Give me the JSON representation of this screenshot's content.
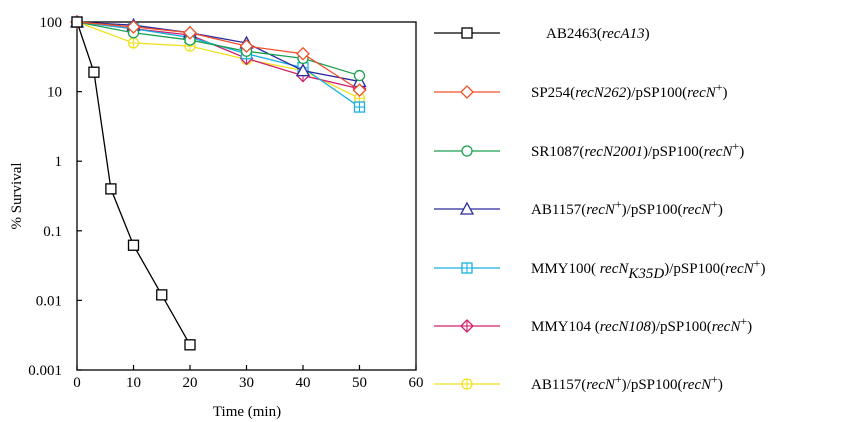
{
  "chart_data": {
    "type": "line",
    "title": "",
    "xlabel": "Time (min)",
    "ylabel": "% Survival",
    "xlim": [
      0,
      60
    ],
    "ylim": [
      0.001,
      100
    ],
    "yscale": "log",
    "grid": false,
    "legend_position": "right",
    "x_ticks": [
      0,
      10,
      20,
      30,
      40,
      50,
      60
    ],
    "y_ticks": [
      100,
      10,
      1,
      0.1,
      0.01,
      0.001
    ],
    "x_tick_labels": [
      "0",
      "10",
      "20",
      "30",
      "40",
      "50",
      "60"
    ],
    "y_tick_labels": [
      "100",
      "10",
      "1",
      "0.1",
      "0.01",
      "0.001"
    ],
    "series": [
      {
        "name": "AB2463(recA13)",
        "legend_parts": [
          {
            "text": "AB2463(",
            "style": "normal"
          },
          {
            "text": "recA13",
            "style": "italic"
          },
          {
            "text": ")",
            "style": "normal"
          }
        ],
        "color": "#000000",
        "marker": "square",
        "x": [
          0,
          3,
          6,
          10,
          15,
          20
        ],
        "y": [
          100,
          19,
          0.4,
          0.062,
          0.012,
          0.0023
        ]
      },
      {
        "name": "SP254(recN262)/pSP100(recN+)",
        "legend_parts": [
          {
            "text": "SP254(",
            "style": "normal"
          },
          {
            "text": "recN262",
            "style": "italic"
          },
          {
            "text": ")/pSP100(",
            "style": "normal"
          },
          {
            "text": "recN",
            "style": "italic"
          },
          {
            "text": "+",
            "style": "sup"
          },
          {
            "text": ")",
            "style": "normal"
          }
        ],
        "color": "#f0502a",
        "marker": "diamond",
        "x": [
          0,
          10,
          20,
          30,
          40,
          50
        ],
        "y": [
          100,
          85,
          70,
          45,
          35,
          10.5
        ]
      },
      {
        "name": "SR1087(recN2001)/pSP100(recN+)",
        "legend_parts": [
          {
            "text": "SR1087(",
            "style": "normal"
          },
          {
            "text": "recN2001",
            "style": "italic"
          },
          {
            "text": ")/pSP100(",
            "style": "normal"
          },
          {
            "text": "recN",
            "style": "italic"
          },
          {
            "text": "+",
            "style": "sup"
          },
          {
            "text": ")",
            "style": "normal"
          }
        ],
        "color": "#1aa050",
        "marker": "circle",
        "x": [
          0,
          10,
          20,
          30,
          40,
          50
        ],
        "y": [
          100,
          70,
          55,
          38,
          30,
          17
        ]
      },
      {
        "name": "AB1157(recN+)/pSP100(recN+)",
        "legend_parts": [
          {
            "text": "AB1157(",
            "style": "normal"
          },
          {
            "text": "recN",
            "style": "italic"
          },
          {
            "text": "+",
            "style": "sup"
          },
          {
            "text": ")/pSP100(",
            "style": "normal"
          },
          {
            "text": "recN",
            "style": "italic"
          },
          {
            "text": "+",
            "style": "sup"
          },
          {
            "text": ")",
            "style": "normal"
          }
        ],
        "color": "#2a2aa0",
        "marker": "triangle",
        "x": [
          0,
          10,
          20,
          30,
          40,
          50
        ],
        "y": [
          100,
          90,
          70,
          50,
          20,
          14
        ]
      },
      {
        "name": "MMY100( recNK35D)/pSP100(recN+)",
        "legend_parts": [
          {
            "text": "MMY100( ",
            "style": "normal"
          },
          {
            "text": "recN",
            "style": "italic"
          },
          {
            "text": "K35D",
            "style": "italic-sub"
          },
          {
            "text": ")/pSP100(",
            "style": "normal"
          },
          {
            "text": "recN",
            "style": "italic"
          },
          {
            "text": "+",
            "style": "sup"
          },
          {
            "text": ")",
            "style": "normal"
          }
        ],
        "color": "#1ab0e0",
        "marker": "square-plus",
        "x": [
          0,
          10,
          20,
          30,
          40,
          50
        ],
        "y": [
          100,
          80,
          60,
          35,
          22,
          6
        ]
      },
      {
        "name": "MMY104 (recN108)/pSP100(recN+)",
        "legend_parts": [
          {
            "text": "MMY104 (",
            "style": "normal"
          },
          {
            "text": "recN108",
            "style": "italic"
          },
          {
            "text": ")/pSP100(",
            "style": "normal"
          },
          {
            "text": "recN",
            "style": "italic"
          },
          {
            "text": "+",
            "style": "sup"
          },
          {
            "text": ")",
            "style": "normal"
          }
        ],
        "color": "#d02070",
        "marker": "diamond-plus",
        "x": [
          0,
          10,
          20,
          30,
          40,
          50
        ],
        "y": [
          100,
          80,
          65,
          30,
          17,
          11
        ]
      },
      {
        "name": "AB1157(recN+)/pSP100(recN+)",
        "legend_parts": [
          {
            "text": "AB1157(",
            "style": "normal"
          },
          {
            "text": "recN",
            "style": "italic"
          },
          {
            "text": "+",
            "style": "sup"
          },
          {
            "text": ")/pSP100(",
            "style": "normal"
          },
          {
            "text": "recN",
            "style": "italic"
          },
          {
            "text": "+",
            "style": "sup"
          },
          {
            "text": ")",
            "style": "normal"
          }
        ],
        "color": "#f0e020",
        "marker": "circle-plus",
        "x": [
          0,
          10,
          20,
          30,
          40,
          50
        ],
        "y": [
          100,
          50,
          45,
          29,
          20,
          8
        ]
      }
    ]
  }
}
